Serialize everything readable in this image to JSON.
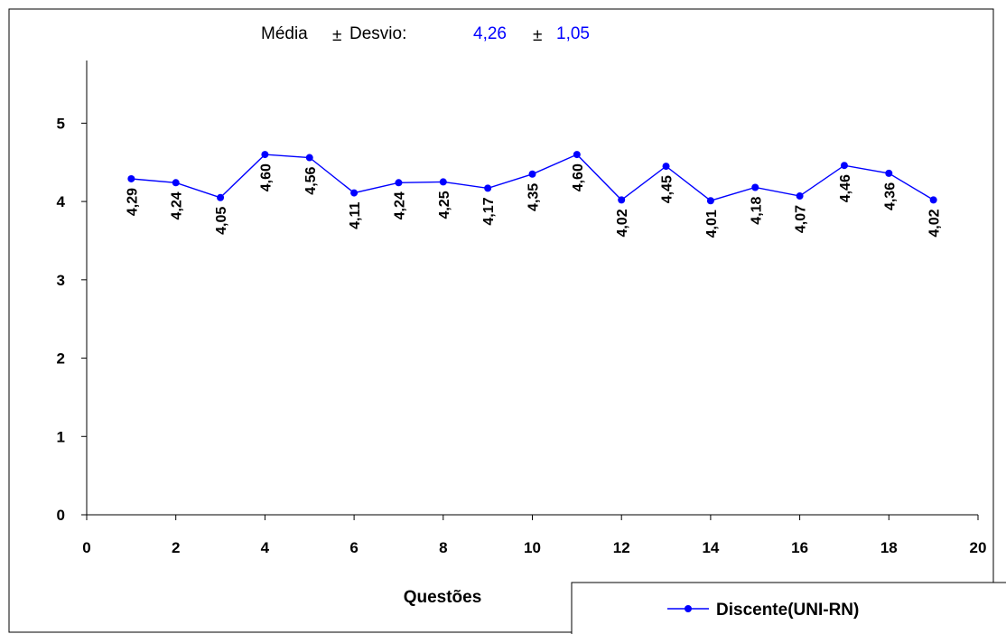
{
  "header": {
    "label": "Média",
    "pm1": "±",
    "desvio_label": "Desvio:",
    "mean_value": "4,26",
    "pm2": "±",
    "sd_value": "1,05",
    "value_color": "#0000ff"
  },
  "chart_data": {
    "type": "line",
    "xlabel": "Questões",
    "ylabel": "",
    "xlim": [
      0,
      20
    ],
    "ylim": [
      0,
      5.8
    ],
    "x_ticks": [
      0,
      2,
      4,
      6,
      8,
      10,
      12,
      14,
      16,
      18,
      20
    ],
    "x_tick_labels": [
      "0",
      "2",
      "4",
      "6",
      "8",
      "10",
      "12",
      "14",
      "16",
      "18",
      "20"
    ],
    "y_ticks": [
      0,
      1,
      2,
      3,
      4,
      5
    ],
    "y_tick_labels": [
      "0",
      "1",
      "2",
      "3",
      "4",
      "5"
    ],
    "grid": false,
    "legend_position": "bottom-right",
    "series": [
      {
        "name": "Discente(UNI-RN)",
        "color": "#0000ff",
        "x": [
          1,
          2,
          3,
          4,
          5,
          6,
          7,
          8,
          9,
          10,
          11,
          12,
          13,
          14,
          15,
          16,
          17,
          18,
          19
        ],
        "values": [
          4.29,
          4.24,
          4.05,
          4.6,
          4.56,
          4.11,
          4.24,
          4.25,
          4.17,
          4.35,
          4.6,
          4.02,
          4.45,
          4.01,
          4.18,
          4.07,
          4.46,
          4.36,
          4.02
        ],
        "data_labels": [
          "4,29",
          "4,24",
          "4,05",
          "4,60",
          "4,56",
          "4,11",
          "4,24",
          "4,25",
          "4,17",
          "4,35",
          "4,60",
          "4,02",
          "4,45",
          "4,01",
          "4,18",
          "4,07",
          "4,46",
          "4,36",
          "4,02"
        ]
      }
    ]
  }
}
